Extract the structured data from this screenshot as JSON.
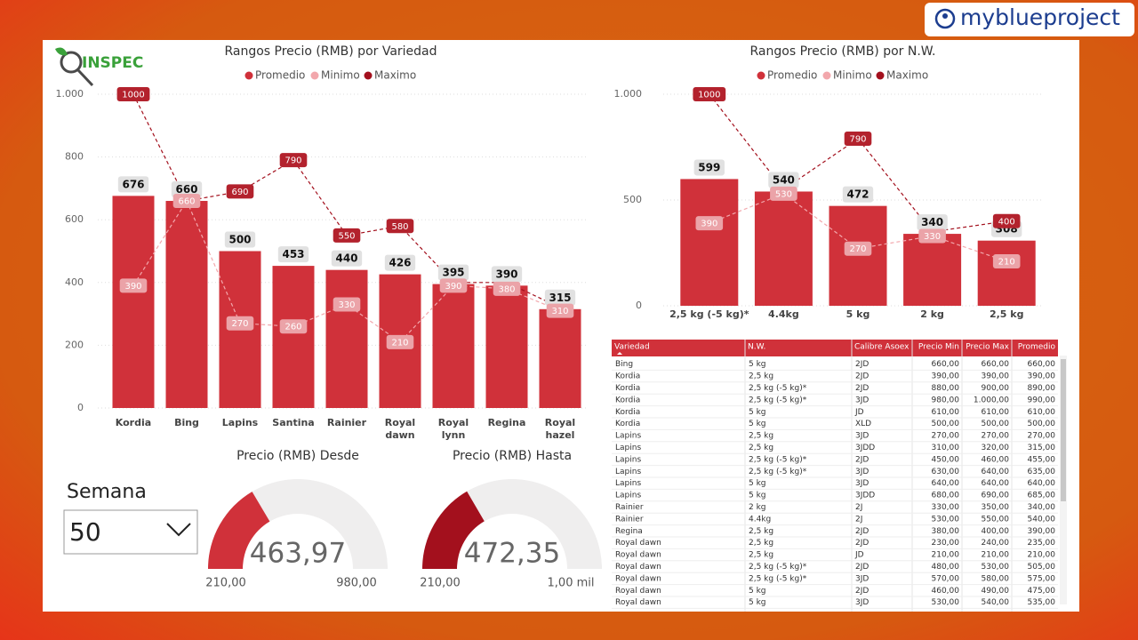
{
  "brand": "myblueproject",
  "logo": "INSPEC",
  "chart_data": [
    {
      "type": "combo",
      "title": "Rangos Precio (RMB) por Variedad",
      "legend": "top",
      "grid": true,
      "categories": [
        "Kordia",
        "Bing",
        "Lapins",
        "Santina",
        "Rainier",
        "Royal dawn",
        "Royal lynn",
        "Regina",
        "Royal hazel"
      ],
      "ylim": [
        0,
        1000
      ],
      "yticks": [
        0,
        200,
        400,
        600,
        800,
        {
          "value": 1000,
          "label": "1.000"
        }
      ],
      "series": [
        {
          "name": "Promedio",
          "type": "bar",
          "color": "#d0313a",
          "values": [
            676,
            660,
            500,
            453,
            440,
            426,
            395,
            390,
            315
          ]
        },
        {
          "name": "Minimo",
          "type": "line",
          "color": "#f2a7ac",
          "values": [
            390,
            660,
            270,
            260,
            330,
            210,
            390,
            380,
            310
          ]
        },
        {
          "name": "Maximo",
          "type": "line",
          "color": "#a3101d",
          "values": [
            1000,
            660,
            690,
            790,
            550,
            580,
            400,
            400,
            320
          ],
          "value_labels": [
            "1000",
            null,
            "690",
            "790",
            "550",
            "580",
            null,
            null,
            null
          ]
        }
      ]
    },
    {
      "type": "combo",
      "title": "Rangos Precio (RMB) por N.W.",
      "legend": "top",
      "grid": true,
      "categories": [
        "2,5 kg (-5 kg)*",
        "4.4kg",
        "5 kg",
        "2 kg",
        "2,5 kg"
      ],
      "ylim": [
        0,
        1000
      ],
      "yticks": [
        0,
        500,
        {
          "value": 1000,
          "label": "1.000"
        }
      ],
      "series": [
        {
          "name": "Promedio",
          "type": "bar",
          "color": "#d0313a",
          "values": [
            599,
            540,
            472,
            340,
            308
          ]
        },
        {
          "name": "Minimo",
          "type": "line",
          "color": "#f2a7ac",
          "values": [
            390,
            530,
            270,
            330,
            210
          ]
        },
        {
          "name": "Maximo",
          "type": "line",
          "color": "#a3101d",
          "values": [
            1000,
            550,
            790,
            350,
            400
          ],
          "value_labels": [
            "1000",
            null,
            "790",
            null,
            "400"
          ]
        }
      ]
    }
  ],
  "gauges": [
    {
      "title": "Precio (RMB) Desde",
      "value": 463.97,
      "value_label": "463,97",
      "color": "#d0313a",
      "min": {
        "value": 210,
        "label": "210,00"
      },
      "max": {
        "value": 980,
        "label": "980,00"
      }
    },
    {
      "title": "Precio (RMB) Hasta",
      "value": 472.35,
      "value_label": "472,35",
      "color": "#a3101d",
      "min": {
        "value": 210,
        "label": "210,00"
      },
      "max": {
        "value": 1000,
        "label": "1,00 mil"
      }
    }
  ],
  "slicer": {
    "label": "Semana",
    "value": "50"
  },
  "table": {
    "columns": [
      "Variedad",
      "N.W.",
      "Calibre Asoex",
      "Precio Min",
      "Precio Max",
      "Promedio"
    ],
    "rows": [
      [
        "Bing",
        "5 kg",
        "2JD",
        "660,00",
        "660,00",
        "660,00"
      ],
      [
        "Kordia",
        "2,5 kg",
        "2JD",
        "390,00",
        "390,00",
        "390,00"
      ],
      [
        "Kordia",
        "2,5 kg (-5 kg)*",
        "2JD",
        "880,00",
        "900,00",
        "890,00"
      ],
      [
        "Kordia",
        "2,5 kg (-5 kg)*",
        "3JD",
        "980,00",
        "1.000,00",
        "990,00"
      ],
      [
        "Kordia",
        "5 kg",
        "JD",
        "610,00",
        "610,00",
        "610,00"
      ],
      [
        "Kordia",
        "5 kg",
        "XLD",
        "500,00",
        "500,00",
        "500,00"
      ],
      [
        "Lapins",
        "2,5 kg",
        "3JD",
        "270,00",
        "270,00",
        "270,00"
      ],
      [
        "Lapins",
        "2,5 kg",
        "3JDD",
        "310,00",
        "320,00",
        "315,00"
      ],
      [
        "Lapins",
        "2,5 kg (-5 kg)*",
        "2JD",
        "450,00",
        "460,00",
        "455,00"
      ],
      [
        "Lapins",
        "2,5 kg (-5 kg)*",
        "3JD",
        "630,00",
        "640,00",
        "635,00"
      ],
      [
        "Lapins",
        "5 kg",
        "3JD",
        "640,00",
        "640,00",
        "640,00"
      ],
      [
        "Lapins",
        "5 kg",
        "3JDD",
        "680,00",
        "690,00",
        "685,00"
      ],
      [
        "Rainier",
        "2 kg",
        "2J",
        "330,00",
        "350,00",
        "340,00"
      ],
      [
        "Rainier",
        "4.4kg",
        "2J",
        "530,00",
        "550,00",
        "540,00"
      ],
      [
        "Regina",
        "2,5 kg",
        "2JD",
        "380,00",
        "400,00",
        "390,00"
      ],
      [
        "Royal dawn",
        "2,5 kg",
        "2JD",
        "230,00",
        "240,00",
        "235,00"
      ],
      [
        "Royal dawn",
        "2,5 kg",
        "JD",
        "210,00",
        "210,00",
        "210,00"
      ],
      [
        "Royal dawn",
        "2,5 kg (-5 kg)*",
        "2JD",
        "480,00",
        "530,00",
        "505,00"
      ],
      [
        "Royal dawn",
        "2,5 kg (-5 kg)*",
        "3JD",
        "570,00",
        "580,00",
        "575,00"
      ],
      [
        "Royal dawn",
        "5 kg",
        "2JD",
        "460,00",
        "490,00",
        "475,00"
      ],
      [
        "Royal dawn",
        "5 kg",
        "3JD",
        "530,00",
        "540,00",
        "535,00"
      ]
    ]
  }
}
